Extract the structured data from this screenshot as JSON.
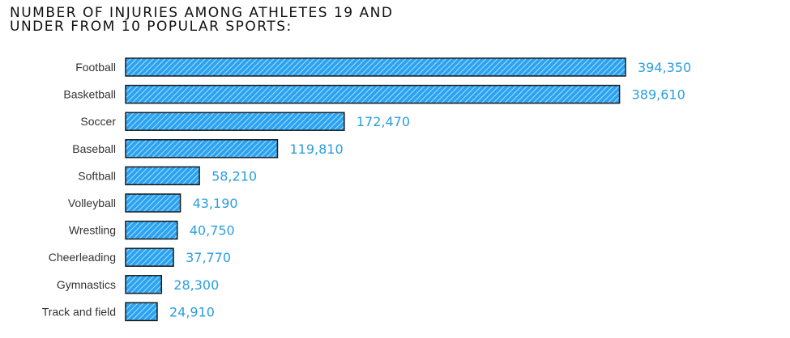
{
  "chart_data": {
    "type": "bar",
    "orientation": "horizontal",
    "title": "NUMBER OF INJURIES AMONG ATHLETES 19 AND\nUNDER FROM 10 POPULAR SPORTS:",
    "categories": [
      "Football",
      "Basketball",
      "Soccer",
      "Baseball",
      "Softball",
      "Volleyball",
      "Wrestling",
      "Cheerleading",
      "Gymnastics",
      "Track and field"
    ],
    "values": [
      394350,
      389610,
      172470,
      119810,
      58210,
      43190,
      40750,
      37770,
      28300,
      24910
    ],
    "value_labels": [
      "394,350",
      "389,610",
      "172,470",
      "119,810",
      "58,210",
      "43,190",
      "40,750",
      "37,770",
      "28,300",
      "24,910"
    ],
    "xlabel": "",
    "ylabel": "",
    "xlim": [
      0,
      394350
    ],
    "grid": false,
    "legend": "none",
    "colors": {
      "bar_fill": "#2aa3f2",
      "bar_hatch": "#cfeafd",
      "bar_stroke": "#1a1a1a",
      "value_text": "#2a9ee0",
      "category_text": "#333333",
      "title_text": "#111111"
    }
  }
}
